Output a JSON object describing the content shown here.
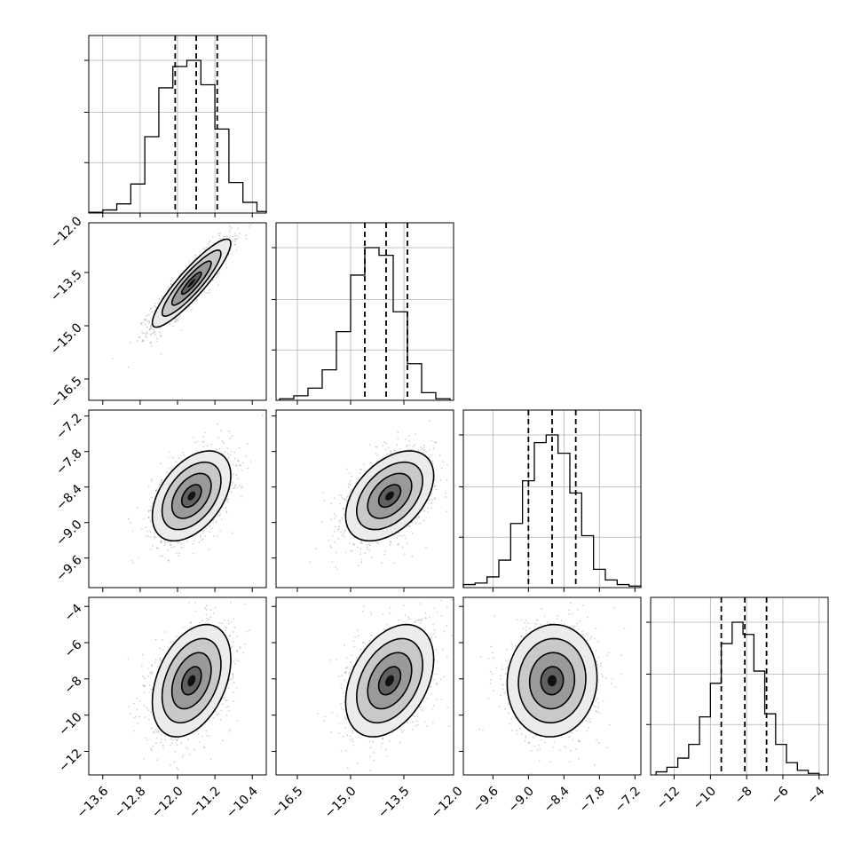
{
  "chart_data": {
    "type": "corner",
    "description_of_params": "4 parameters, lower-triangle corner plot",
    "params": [
      {
        "name": "",
        "range": [
          -13.9,
          -10.1
        ],
        "ticks": [
          -13.6,
          -12.8,
          -12.0,
          -11.2,
          -10.4
        ],
        "tick_labels": [
          "−13.6",
          "−12.8",
          "−12.0",
          "−11.2",
          "−10.4"
        ],
        "quantiles": [
          -12.05,
          -11.6,
          -11.15
        ],
        "hist_bins": [
          -13.9,
          -13.6,
          -13.3,
          -13.0,
          -12.7,
          -12.4,
          -12.1,
          -11.8,
          -11.5,
          -11.2,
          -10.9,
          -10.6,
          -10.3,
          -10.0
        ],
        "hist_values": [
          0.005,
          0.02,
          0.06,
          0.19,
          0.5,
          0.82,
          0.96,
          1.0,
          0.84,
          0.55,
          0.2,
          0.07,
          0.01
        ]
      },
      {
        "name": "",
        "range": [
          -17.1,
          -12.1
        ],
        "ticks": [
          -16.5,
          -15.0,
          -13.5,
          -12.0
        ],
        "tick_labels": [
          "−16.5",
          "−15.0",
          "−13.5",
          "−12.0"
        ],
        "quantiles": [
          -14.6,
          -14.0,
          -13.4
        ],
        "hist_bins": [
          -17.0,
          -16.6,
          -16.2,
          -15.8,
          -15.4,
          -15.0,
          -14.6,
          -14.2,
          -13.8,
          -13.4,
          -13.0,
          -12.6,
          -12.2
        ],
        "hist_values": [
          0.01,
          0.03,
          0.08,
          0.2,
          0.45,
          0.82,
          1.0,
          0.95,
          0.58,
          0.24,
          0.05,
          0.01
        ]
      },
      {
        "name": "",
        "range": [
          -10.1,
          -7.1
        ],
        "ticks": [
          -9.6,
          -9.0,
          -8.4,
          -7.8,
          -7.2
        ],
        "tick_labels": [
          "−9.6",
          "−9.0",
          "−8.4",
          "−7.8",
          "−7.2"
        ],
        "quantiles": [
          -9.0,
          -8.6,
          -8.2
        ],
        "hist_bins": [
          -10.1,
          -9.9,
          -9.7,
          -9.5,
          -9.3,
          -9.1,
          -8.9,
          -8.7,
          -8.5,
          -8.3,
          -8.1,
          -7.9,
          -7.7,
          -7.5,
          -7.3,
          -7.1
        ],
        "hist_values": [
          0.02,
          0.03,
          0.07,
          0.18,
          0.42,
          0.7,
          0.95,
          1.0,
          0.88,
          0.62,
          0.34,
          0.12,
          0.05,
          0.02,
          0.01
        ]
      },
      {
        "name": "",
        "range": [
          -13.3,
          -3.5
        ],
        "ticks": [
          -12,
          -10,
          -8,
          -6,
          -4
        ],
        "tick_labels": [
          "−12",
          "−10",
          "−8",
          "−6",
          "−4"
        ],
        "quantiles": [
          -9.4,
          -8.1,
          -6.9
        ],
        "hist_bins": [
          -13.0,
          -12.4,
          -11.8,
          -11.2,
          -10.6,
          -10.0,
          -9.4,
          -8.8,
          -8.2,
          -7.6,
          -7.0,
          -6.4,
          -5.8,
          -5.2,
          -4.6,
          -4.0
        ],
        "hist_values": [
          0.02,
          0.05,
          0.11,
          0.2,
          0.38,
          0.6,
          0.86,
          1.0,
          0.92,
          0.68,
          0.4,
          0.2,
          0.08,
          0.03,
          0.01
        ]
      }
    ],
    "pairs": [
      {
        "x": 0,
        "y": 1,
        "mean": [
          -11.7,
          -13.8
        ],
        "sd": [
          0.42,
          0.62
        ],
        "corr": 0.9
      },
      {
        "x": 0,
        "y": 2,
        "mean": [
          -11.7,
          -8.55
        ],
        "sd": [
          0.42,
          0.38
        ],
        "corr": 0.45
      },
      {
        "x": 1,
        "y": 2,
        "mean": [
          -13.9,
          -8.55
        ],
        "sd": [
          0.62,
          0.38
        ],
        "corr": 0.45
      },
      {
        "x": 0,
        "y": 3,
        "mean": [
          -11.7,
          -8.1
        ],
        "sd": [
          0.42,
          1.55
        ],
        "corr": 0.38
      },
      {
        "x": 1,
        "y": 3,
        "mean": [
          -13.9,
          -8.1
        ],
        "sd": [
          0.62,
          1.55
        ],
        "corr": 0.38
      },
      {
        "x": 2,
        "y": 3,
        "mean": [
          -8.6,
          -8.1
        ],
        "sd": [
          0.38,
          1.55
        ],
        "corr": 0.05
      }
    ],
    "contour_levels_sigma": [
      0.5,
      1.0,
      1.5,
      2.0
    ],
    "grid": true,
    "colors": {
      "line": "#000000",
      "grid": "#b0b0b0",
      "points": "#000000",
      "fill_max": "#000000"
    }
  }
}
